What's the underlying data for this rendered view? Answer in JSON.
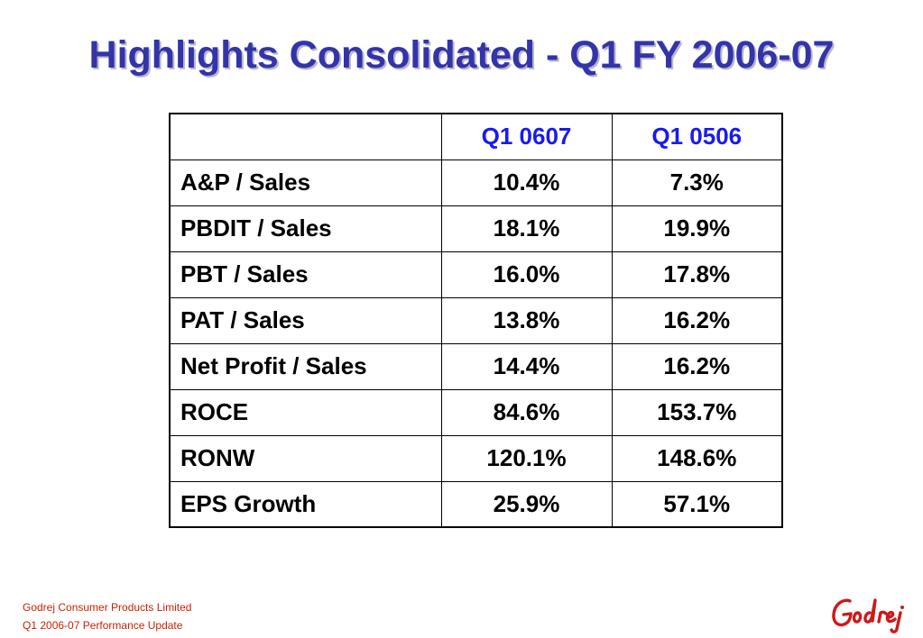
{
  "title": "Highlights Consolidated - Q1 FY 2006-07",
  "table": {
    "columns": [
      "",
      "Q1 0607",
      "Q1 0506"
    ],
    "rows": [
      {
        "label": "A&P / Sales",
        "q1_0607": "10.4%",
        "q1_0506": "7.3%"
      },
      {
        "label": "PBDIT / Sales",
        "q1_0607": "18.1%",
        "q1_0506": "19.9%"
      },
      {
        "label": "PBT / Sales",
        "q1_0607": "16.0%",
        "q1_0506": "17.8%"
      },
      {
        "label": "PAT / Sales",
        "q1_0607": "13.8%",
        "q1_0506": "16.2%"
      },
      {
        "label": "Net Profit / Sales",
        "q1_0607": "14.4%",
        "q1_0506": "16.2%"
      },
      {
        "label": "ROCE",
        "q1_0607": "84.6%",
        "q1_0506": "153.7%"
      },
      {
        "label": "RONW",
        "q1_0607": "120.1%",
        "q1_0506": "148.6%"
      },
      {
        "label": "EPS Growth",
        "q1_0607": "25.9%",
        "q1_0506": "57.1%"
      }
    ]
  },
  "footer": {
    "company": "Godrej Consumer Products Limited",
    "report": "Q1 2006-07 Performance Update"
  },
  "logo": {
    "text": "Godrej",
    "color": "#cc1a1a"
  },
  "colors": {
    "title": "#3333aa",
    "header_text": "#1a1aee",
    "footer_text": "#cc2200"
  }
}
